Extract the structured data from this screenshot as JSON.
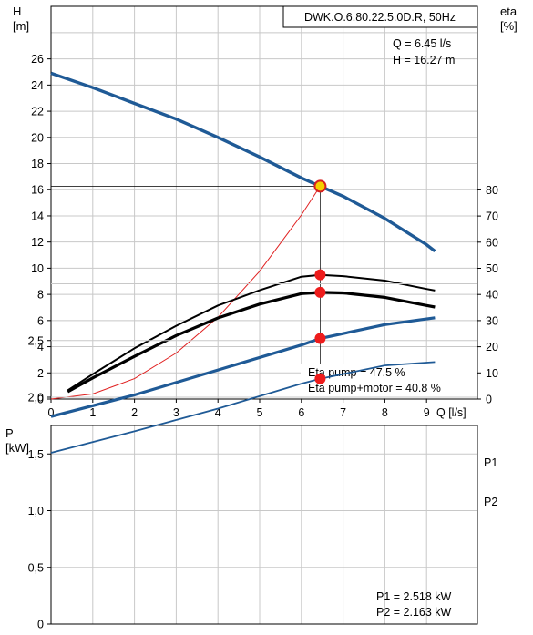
{
  "chart_data": [
    {
      "type": "line",
      "title": "DWK.O.6.80.22.5.0D.R, 50Hz",
      "y_axis_label": "H",
      "y_axis_unit": "[m]",
      "y2_axis_label": "eta",
      "y2_axis_unit": "[%]",
      "x_axis_label": "Q [l/s]",
      "xlim": [
        0,
        10
      ],
      "ylim": [
        0,
        28
      ],
      "y2lim": [
        0,
        90
      ],
      "x_ticks": [
        "0",
        "1",
        "2",
        "3",
        "4",
        "5",
        "6",
        "7",
        "8",
        "9"
      ],
      "y_ticks": [
        "0",
        "2",
        "4",
        "6",
        "8",
        "10",
        "12",
        "14",
        "16",
        "18",
        "20",
        "22",
        "24",
        "26"
      ],
      "y2_ticks": [
        "0",
        "10",
        "20",
        "30",
        "40",
        "50",
        "60",
        "70",
        "80"
      ],
      "grid": true,
      "duty_point_labels": [
        "Q = 6.45 l/s",
        "H = 16.27 m"
      ],
      "efficiency_labels": [
        "Eta pump = 47.5 %",
        "Eta pump+motor = 40.8 %"
      ],
      "duty_point": {
        "q": 6.45,
        "h": 16.27,
        "eta_pump": 47.5,
        "eta_pump_motor": 40.8
      },
      "series": [
        {
          "axis": "left",
          "color": "#1f5a96",
          "x": [
            0,
            1,
            2,
            3,
            4,
            5,
            6,
            6.45,
            7,
            8,
            9,
            9.2
          ],
          "y": [
            24.9,
            23.8,
            22.6,
            21.4,
            20.0,
            18.5,
            16.9,
            16.27,
            15.5,
            13.8,
            11.8,
            11.3
          ]
        },
        {
          "axis": "right",
          "color": "#000000",
          "x": [
            0.4,
            1,
            2,
            3,
            4,
            5,
            6,
            6.45,
            7,
            8,
            9,
            9.2
          ],
          "y": [
            3.3,
            9.5,
            19.4,
            28.0,
            35.8,
            41.6,
            46.8,
            47.5,
            47.0,
            45.3,
            42.1,
            41.5
          ]
        },
        {
          "axis": "right",
          "color": "#000000",
          "x": [
            0.4,
            1,
            2,
            3,
            4,
            5,
            6,
            6.45,
            7,
            8,
            9,
            9.2
          ],
          "y": [
            2.8,
            8.1,
            16.3,
            24.3,
            31.0,
            36.3,
            40.3,
            40.8,
            40.6,
            38.9,
            35.8,
            35.2
          ]
        },
        {
          "axis": "left",
          "color": "#e02020",
          "x": [
            0,
            1,
            2,
            3,
            4,
            5,
            6,
            6.45
          ],
          "y": [
            0,
            0.39,
            1.56,
            3.52,
            6.25,
            9.77,
            14.07,
            16.27
          ]
        }
      ]
    },
    {
      "type": "line",
      "y_axis_label": "P",
      "y_axis_unit": "[kW]",
      "xlim": [
        0,
        10
      ],
      "ylim": [
        0,
        3.2
      ],
      "y_ticks": [
        "0",
        "0,5",
        "1,0",
        "1,5",
        "2,0",
        "2,5"
      ],
      "grid": true,
      "power_labels": [
        "P1 = 2.518 kW",
        "P2 = 2.163 kW"
      ],
      "series": [
        {
          "name": "P1",
          "color": "#1f5a96",
          "x": [
            0,
            2,
            4,
            6,
            6.45,
            8,
            9.2
          ],
          "y": [
            1.83,
            2.02,
            2.24,
            2.46,
            2.518,
            2.64,
            2.7
          ]
        },
        {
          "name": "P2",
          "color": "#1f5a96",
          "x": [
            0,
            2,
            4,
            6,
            6.45,
            8,
            9.2
          ],
          "y": [
            1.51,
            1.7,
            1.9,
            2.12,
            2.163,
            2.28,
            2.31
          ]
        }
      ],
      "points": [
        {
          "x": 6.45,
          "y": 2.518
        },
        {
          "x": 6.45,
          "y": 2.163
        }
      ]
    }
  ]
}
